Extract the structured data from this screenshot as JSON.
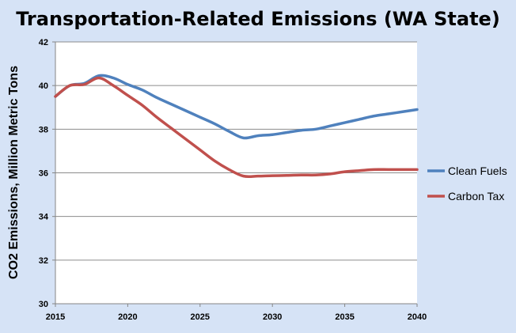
{
  "chart_data": {
    "type": "line",
    "title": "Transportation-Related Emissions (WA State)",
    "xlabel": "",
    "ylabel": "CO2 Emissions, Million Metric Tons",
    "xlim": [
      2015,
      2040
    ],
    "ylim": [
      30,
      42
    ],
    "x_ticks": [
      2015,
      2020,
      2025,
      2030,
      2035,
      2040
    ],
    "y_ticks": [
      30,
      32,
      34,
      36,
      38,
      40,
      42
    ],
    "grid": "horizontal",
    "legend_position": "right",
    "series": [
      {
        "name": "Clean Fuels",
        "color": "#4f81bd",
        "x": [
          2015,
          2016,
          2017,
          2018,
          2019,
          2020,
          2021,
          2022,
          2023,
          2024,
          2025,
          2026,
          2027,
          2028,
          2029,
          2030,
          2031,
          2032,
          2033,
          2034,
          2035,
          2036,
          2037,
          2038,
          2039,
          2040
        ],
        "values": [
          39.5,
          40.0,
          40.1,
          40.45,
          40.35,
          40.05,
          39.8,
          39.45,
          39.15,
          38.85,
          38.55,
          38.25,
          37.9,
          37.6,
          37.7,
          37.75,
          37.85,
          37.95,
          38.0,
          38.15,
          38.3,
          38.45,
          38.6,
          38.7,
          38.8,
          38.9
        ]
      },
      {
        "name": "Carbon Tax",
        "color": "#c0504d",
        "x": [
          2015,
          2016,
          2017,
          2018,
          2019,
          2020,
          2021,
          2022,
          2023,
          2024,
          2025,
          2026,
          2027,
          2028,
          2029,
          2030,
          2031,
          2032,
          2033,
          2034,
          2035,
          2036,
          2037,
          2038,
          2039,
          2040
        ],
        "values": [
          39.5,
          40.0,
          40.05,
          40.35,
          40.0,
          39.55,
          39.1,
          38.55,
          38.05,
          37.55,
          37.05,
          36.55,
          36.15,
          35.85,
          35.85,
          35.87,
          35.88,
          35.9,
          35.9,
          35.95,
          36.05,
          36.1,
          36.15,
          36.15,
          36.15,
          36.15
        ]
      }
    ]
  }
}
